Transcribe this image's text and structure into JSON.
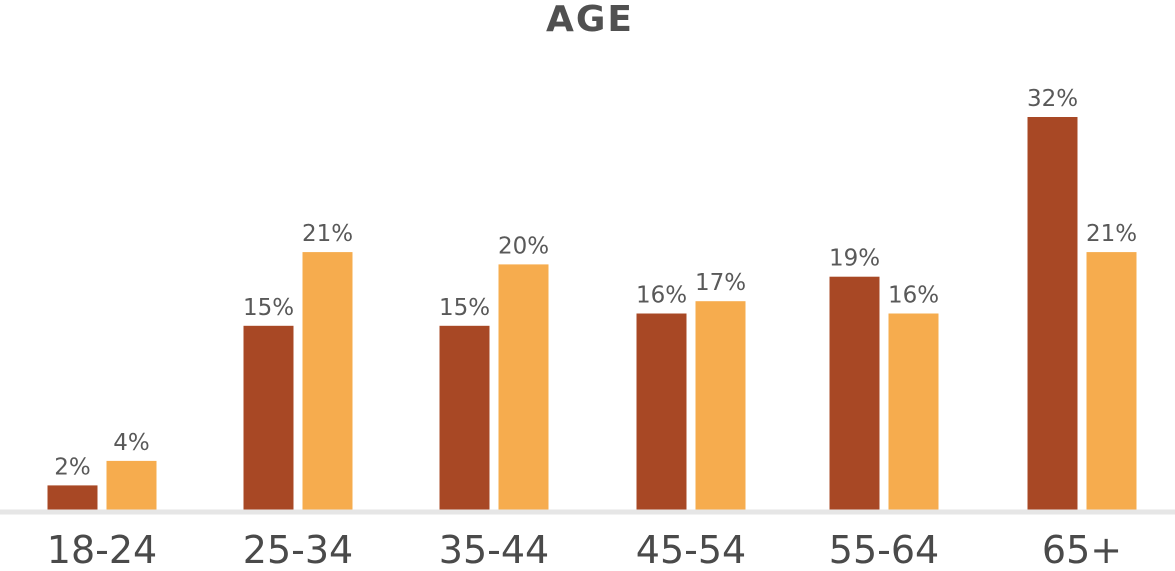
{
  "chart_data": {
    "type": "bar",
    "title": "AGE",
    "xlabel": "",
    "ylabel": "",
    "categories": [
      "18-24",
      "25-34",
      "35-44",
      "45-54",
      "55-64",
      "65+"
    ],
    "series": [
      {
        "values": [
          2,
          15,
          15,
          16,
          19,
          32
        ],
        "labels": [
          "2%",
          "15%",
          "15%",
          "16%",
          "19%",
          "32%"
        ],
        "color": "#A84825"
      },
      {
        "values": [
          4,
          21,
          20,
          17,
          16,
          21
        ],
        "labels": [
          "4%",
          "21%",
          "20%",
          "17%",
          "16%",
          "21%"
        ],
        "color": "#F6AC4E"
      }
    ],
    "ylim": [
      0,
      32
    ],
    "grid": false,
    "legend": "none",
    "baseline_color": "#E6E6E6"
  }
}
